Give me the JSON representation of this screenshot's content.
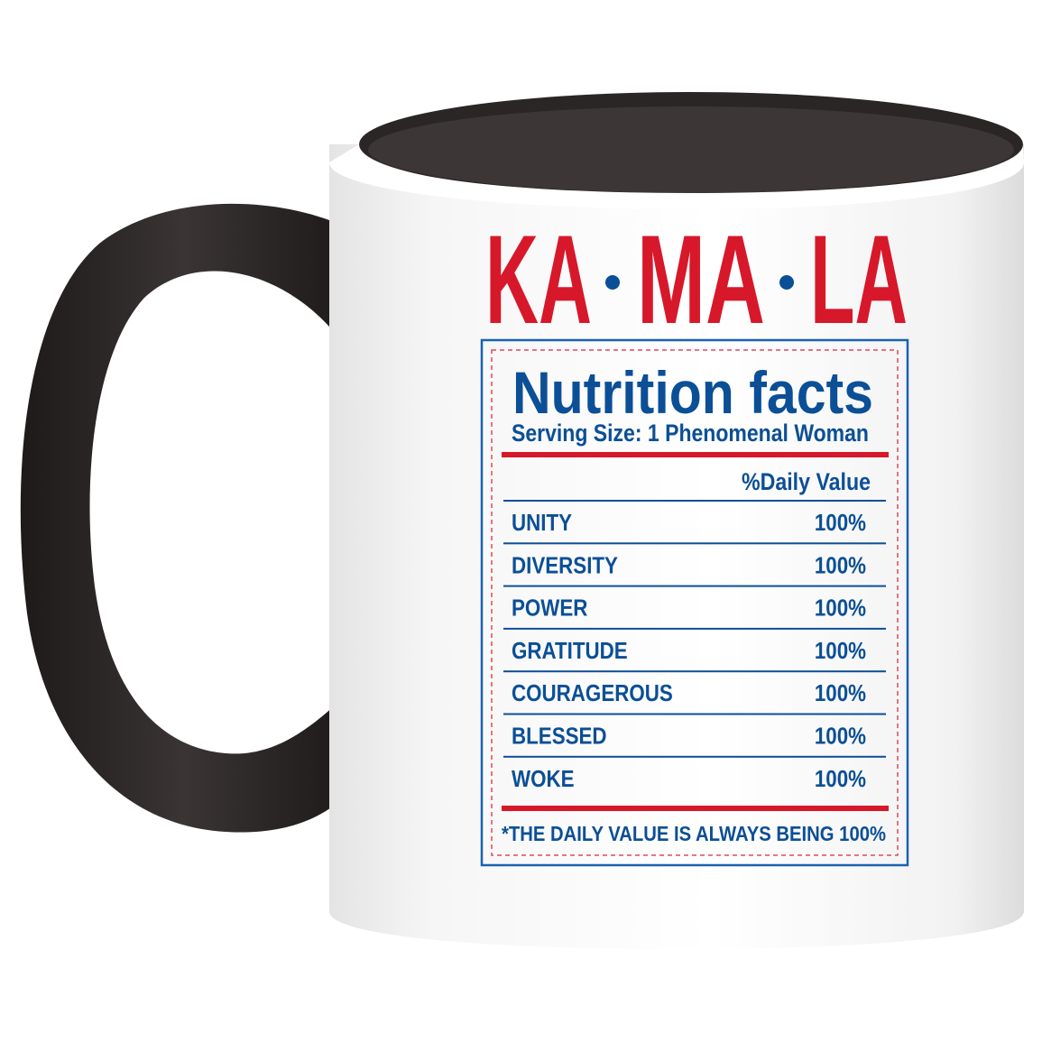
{
  "mug": {
    "colors": {
      "body": "#ffffff",
      "accent": "#2b2626",
      "red": "#d7182a",
      "blue": "#0b4f96"
    },
    "title": "KA•MA•LA",
    "title_parts": [
      "KA",
      "MA",
      "LA"
    ]
  },
  "label": {
    "heading": "Nutrition facts",
    "serving_size": "Serving Size: 1 Phenomenal Woman",
    "column_header": "%Daily Value",
    "rows": [
      {
        "name": "UNITY",
        "value": "100%"
      },
      {
        "name": "DIVERSITY",
        "value": "100%"
      },
      {
        "name": "POWER",
        "value": "100%"
      },
      {
        "name": "GRATITUDE",
        "value": "100%"
      },
      {
        "name": "COURAGEROUS",
        "value": "100%"
      },
      {
        "name": "BLESSED",
        "value": "100%"
      },
      {
        "name": "WOKE",
        "value": "100%"
      }
    ],
    "footnote": "*THE DAILY VALUE IS ALWAYS BEING 100%"
  }
}
